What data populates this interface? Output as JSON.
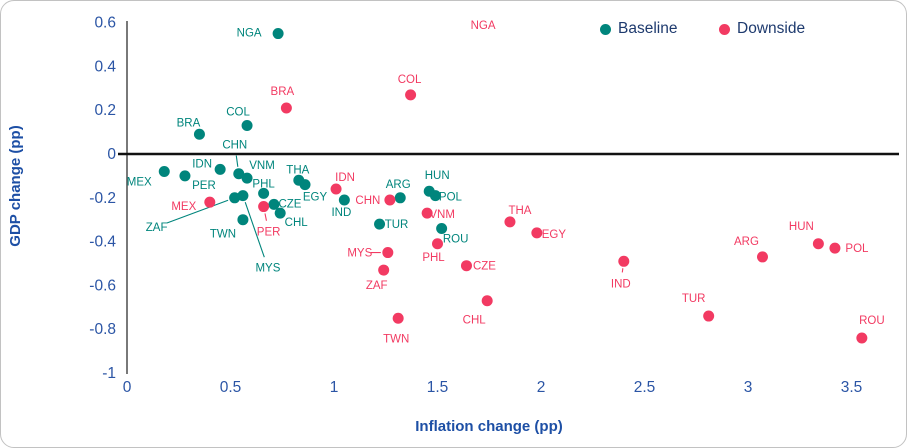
{
  "chart_data": {
    "type": "scatter",
    "title": "",
    "xlabel": "Inflation change (pp)",
    "ylabel": "GDP change (pp)",
    "xlim": [
      0,
      3.7
    ],
    "ylim": [
      -1,
      0.6
    ],
    "grid": false,
    "legend_position": "top-right",
    "x_ticks": [
      0,
      0.5,
      1,
      1.5,
      2,
      2.5,
      3,
      3.5
    ],
    "x_tick_labels": [
      "0",
      "0.5",
      "1",
      "1.5",
      "2",
      "2.5",
      "3",
      "3.5"
    ],
    "y_ticks": [
      0.6,
      0.4,
      0.2,
      0,
      -0.2,
      -0.4,
      -0.6,
      -0.8,
      -1
    ],
    "y_tick_labels": [
      "0.6",
      "0.4",
      "0.2",
      "0",
      "-0.2",
      "-0.4",
      "-0.6",
      "-0.8",
      "-1"
    ],
    "colors": {
      "baseline": "#00857C",
      "downside": "#F23A62",
      "tick_text": "#2B55A5",
      "axis_title_text": "#1D4FA5",
      "legend_text": "#1E3A6E",
      "zero_line": "#111111",
      "axis_line": "#404040"
    },
    "series": [
      {
        "name": "Baseline",
        "color": "#00857C",
        "points": [
          {
            "c": "NGA",
            "x": 0.73,
            "y": 0.55,
            "ox": -29,
            "oy": -1
          },
          {
            "c": "BRA",
            "x": 0.35,
            "y": 0.09,
            "ox": -11,
            "oy": -12
          },
          {
            "c": "COL",
            "x": 0.58,
            "y": 0.13,
            "ox": -9,
            "oy": -14
          },
          {
            "c": "MEX",
            "x": 0.18,
            "y": -0.08,
            "ox": -25,
            "oy": 10
          },
          {
            "c": "PER",
            "x": 0.28,
            "y": -0.1,
            "ox": 19,
            "oy": 9
          },
          {
            "c": "IDN",
            "x": 0.45,
            "y": -0.07,
            "ox": -18,
            "oy": -6
          },
          {
            "c": "CHN",
            "x": 0.54,
            "y": -0.09,
            "ox": -4,
            "oy": -29,
            "leader": true
          },
          {
            "c": "VNM",
            "x": 0.58,
            "y": -0.11,
            "ox": 15,
            "oy": -13
          },
          {
            "c": "THA",
            "x": 0.83,
            "y": -0.12,
            "ox": -1,
            "oy": -11
          },
          {
            "c": "EGY",
            "x": 0.86,
            "y": -0.14,
            "ox": 10,
            "oy": 12
          },
          {
            "c": "PHL",
            "x": 0.66,
            "y": -0.18,
            "ox": 0,
            "oy": -10
          },
          {
            "c": "ZAF",
            "x": 0.52,
            "y": -0.2,
            "ox": -78,
            "oy": 29,
            "leader": true
          },
          {
            "c": "MYS",
            "x": 0.56,
            "y": -0.19,
            "ox": 25,
            "oy": 72,
            "leader": true
          },
          {
            "c": "CZE",
            "x": 0.71,
            "y": -0.23,
            "ox": 16,
            "oy": -1
          },
          {
            "c": "CHL",
            "x": 0.74,
            "y": -0.27,
            "ox": 16,
            "oy": 9
          },
          {
            "c": "TWN",
            "x": 0.56,
            "y": -0.3,
            "ox": -20,
            "oy": 14
          },
          {
            "c": "IND",
            "x": 1.05,
            "y": -0.21,
            "ox": -3,
            "oy": 12
          },
          {
            "c": "ARG",
            "x": 1.32,
            "y": -0.2,
            "ox": -2,
            "oy": -14
          },
          {
            "c": "HUN",
            "x": 1.46,
            "y": -0.17,
            "ox": 8,
            "oy": -16
          },
          {
            "c": "POL",
            "x": 1.49,
            "y": -0.19,
            "ox": 15,
            "oy": 1
          },
          {
            "c": "TUR",
            "x": 1.22,
            "y": -0.32,
            "ox": 17,
            "oy": 0
          },
          {
            "c": "ROU",
            "x": 1.52,
            "y": -0.34,
            "ox": 14,
            "oy": 10
          }
        ]
      },
      {
        "name": "Downside",
        "color": "#F23A62",
        "points": [
          {
            "c": "NGA",
            "x": 1.72,
            "y": 0.59,
            "ox": 0,
            "oy": 0,
            "label_only": true
          },
          {
            "c": "BRA",
            "x": 0.77,
            "y": 0.21,
            "ox": -4,
            "oy": -17
          },
          {
            "c": "COL",
            "x": 1.37,
            "y": 0.27,
            "ox": -1,
            "oy": -16
          },
          {
            "c": "MEX",
            "x": 0.4,
            "y": -0.22,
            "ox": -26,
            "oy": 4
          },
          {
            "c": "PER",
            "x": 0.66,
            "y": -0.24,
            "ox": 5,
            "oy": 25,
            "leader": true
          },
          {
            "c": "IDN",
            "x": 1.01,
            "y": -0.16,
            "ox": 9,
            "oy": -12
          },
          {
            "c": "CHN",
            "x": 1.27,
            "y": -0.21,
            "ox": -22,
            "oy": 0
          },
          {
            "c": "VNM",
            "x": 1.45,
            "y": -0.27,
            "ox": 15,
            "oy": 1
          },
          {
            "c": "THA",
            "x": 1.85,
            "y": -0.31,
            "ox": 10,
            "oy": -12
          },
          {
            "c": "EGY",
            "x": 1.98,
            "y": -0.36,
            "ox": 17,
            "oy": 1
          },
          {
            "c": "PHL",
            "x": 1.5,
            "y": -0.41,
            "ox": -4,
            "oy": 13
          },
          {
            "c": "MYS",
            "x": 1.26,
            "y": -0.45,
            "ox": -28,
            "oy": 0,
            "leader": true
          },
          {
            "c": "ZAF",
            "x": 1.24,
            "y": -0.53,
            "ox": -7,
            "oy": 15
          },
          {
            "c": "CZE",
            "x": 1.64,
            "y": -0.51,
            "ox": 18,
            "oy": 0
          },
          {
            "c": "CHL",
            "x": 1.74,
            "y": -0.67,
            "ox": -13,
            "oy": 19
          },
          {
            "c": "TWN",
            "x": 1.31,
            "y": -0.75,
            "ox": -2,
            "oy": 20
          },
          {
            "c": "IND",
            "x": 2.4,
            "y": -0.49,
            "ox": -3,
            "oy": 22,
            "leader": true
          },
          {
            "c": "TUR",
            "x": 2.81,
            "y": -0.74,
            "ox": -15,
            "oy": -18
          },
          {
            "c": "ARG",
            "x": 3.07,
            "y": -0.47,
            "ox": -16,
            "oy": -16
          },
          {
            "c": "HUN",
            "x": 3.34,
            "y": -0.41,
            "ox": -17,
            "oy": -18
          },
          {
            "c": "POL",
            "x": 3.42,
            "y": -0.43,
            "ox": 22,
            "oy": 0
          },
          {
            "c": "ROU",
            "x": 3.55,
            "y": -0.84,
            "ox": 10,
            "oy": -18
          }
        ]
      }
    ]
  }
}
